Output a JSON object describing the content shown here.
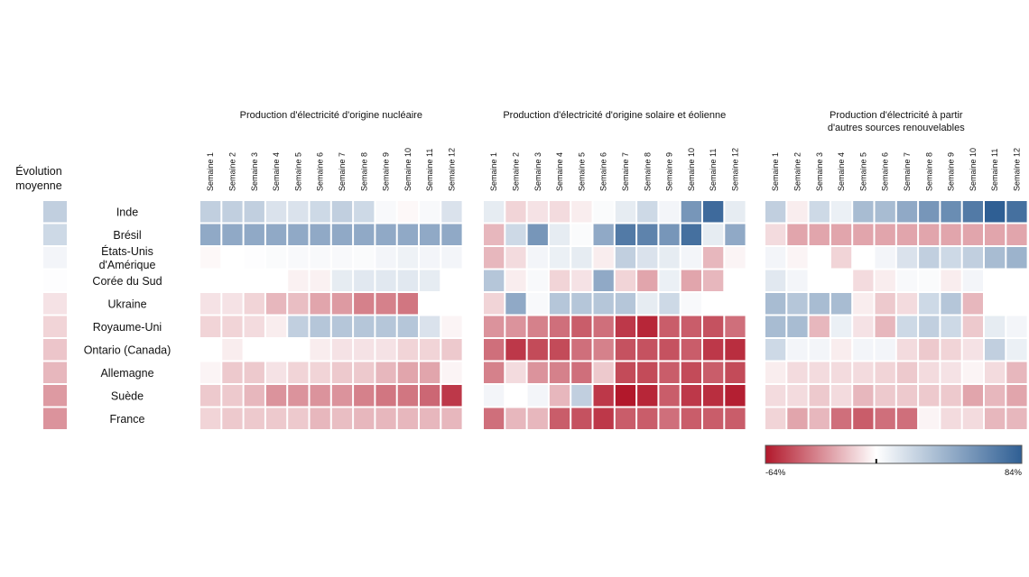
{
  "chart_data": {
    "type": "heatmap",
    "legend_title": "Évolution moyenne",
    "scale": {
      "min": -64,
      "max": 84,
      "min_label": "-64%",
      "max_label": "84%",
      "low_color": "#b2182b",
      "mid_color": "#ffffff",
      "high_color": "#2f5f94"
    },
    "weeks": [
      "Semaine 1",
      "Semaine 2",
      "Semaine 3",
      "Semaine 4",
      "Semaine 5",
      "Semaine 6",
      "Semaine 7",
      "Semaine 8",
      "Semaine 9",
      "Semaine 10",
      "Semaine 11",
      "Semaine 12"
    ],
    "countries": [
      {
        "lines": [
          "Inde"
        ]
      },
      {
        "lines": [
          "Brésil"
        ]
      },
      {
        "lines": [
          "États-Unis",
          "d'Amérique"
        ]
      },
      {
        "lines": [
          "Corée du Sud"
        ]
      },
      {
        "lines": [
          "Ukraine"
        ]
      },
      {
        "lines": [
          "Royaume-Uni"
        ]
      },
      {
        "lines": [
          "Ontario (Canada)"
        ]
      },
      {
        "lines": [
          "Allemagne"
        ]
      },
      {
        "lines": [
          "Suède"
        ]
      },
      {
        "lines": [
          "France"
        ]
      }
    ],
    "average": [
      25,
      20,
      5,
      1,
      -8,
      -12,
      -16,
      -20,
      -28,
      -30
    ],
    "panels": [
      {
        "title_lines": [
          "Production d'électricité d'origine nucléaire"
        ],
        "values": [
          [
            25,
            25,
            25,
            15,
            15,
            20,
            25,
            20,
            3,
            -2,
            3,
            15
          ],
          [
            45,
            45,
            45,
            45,
            45,
            45,
            45,
            45,
            45,
            45,
            45,
            45
          ],
          [
            -2,
            0,
            1,
            2,
            3,
            3,
            3,
            2,
            5,
            7,
            5,
            5
          ],
          [
            0,
            0,
            0,
            0,
            -4,
            -4,
            10,
            12,
            12,
            12,
            10,
            0
          ],
          [
            -8,
            -8,
            -12,
            -20,
            -18,
            -25,
            -28,
            -35,
            -35,
            -38,
            null,
            null
          ],
          [
            -12,
            -12,
            -10,
            -5,
            25,
            30,
            30,
            30,
            30,
            30,
            15,
            -3
          ],
          [
            0,
            -5,
            0,
            0,
            0,
            -5,
            -8,
            -8,
            -8,
            -12,
            -12,
            -15
          ],
          [
            -3,
            -15,
            -15,
            -8,
            -12,
            -12,
            -15,
            -15,
            -20,
            -25,
            -25,
            -3
          ],
          [
            -15,
            -15,
            -20,
            -30,
            -30,
            -30,
            -30,
            -35,
            -38,
            -38,
            -42,
            -55
          ],
          [
            -12,
            -15,
            -15,
            -15,
            -15,
            -20,
            -18,
            -20,
            -20,
            -20,
            -20,
            -20
          ]
        ]
      },
      {
        "title_lines": [
          "Production d'électricité d'origine solaire et éolienne"
        ],
        "values": [
          [
            10,
            -12,
            -8,
            -10,
            -5,
            2,
            10,
            20,
            5,
            55,
            78,
            10
          ],
          [
            -20,
            20,
            55,
            10,
            2,
            45,
            70,
            65,
            55,
            75,
            10,
            45
          ],
          [
            -20,
            -10,
            5,
            8,
            10,
            -5,
            25,
            15,
            10,
            5,
            -20,
            -3
          ],
          [
            30,
            -5,
            3,
            -12,
            -8,
            45,
            -12,
            -25,
            8,
            -25,
            -20,
            null
          ],
          [
            -12,
            45,
            3,
            30,
            30,
            30,
            30,
            10,
            20,
            3,
            null,
            null
          ],
          [
            -30,
            -30,
            -35,
            -40,
            -45,
            -40,
            -55,
            -60,
            -45,
            -45,
            -48,
            -40
          ],
          [
            -40,
            -55,
            -50,
            -50,
            -40,
            -35,
            -48,
            -48,
            -48,
            -45,
            -55,
            -58
          ],
          [
            -35,
            -10,
            -30,
            -35,
            -40,
            -15,
            -50,
            -50,
            -45,
            -50,
            -45,
            -50
          ],
          [
            5,
            0,
            5,
            -20,
            25,
            -55,
            -64,
            -60,
            -45,
            -55,
            -58,
            -62
          ],
          [
            -40,
            -20,
            -20,
            -45,
            -48,
            -55,
            -45,
            -45,
            -40,
            -45,
            -45,
            -45
          ]
        ]
      },
      {
        "title_lines": [
          "Production d'électricité à partir",
          "d'autres sources renouvelables"
        ],
        "values": [
          [
            25,
            -5,
            20,
            8,
            35,
            35,
            45,
            55,
            60,
            70,
            84,
            75
          ],
          [
            -10,
            -25,
            -25,
            -25,
            -25,
            -25,
            -25,
            -25,
            -25,
            -25,
            -25,
            -25
          ],
          [
            5,
            -3,
            0,
            -12,
            0,
            5,
            15,
            25,
            20,
            25,
            35,
            40
          ],
          [
            12,
            5,
            0,
            0,
            -10,
            -5,
            3,
            2,
            -5,
            5,
            null,
            null
          ],
          [
            35,
            30,
            35,
            35,
            -5,
            -15,
            -10,
            20,
            30,
            -20,
            null,
            null
          ],
          [
            35,
            35,
            -20,
            8,
            -8,
            -20,
            20,
            25,
            20,
            -15,
            10,
            5
          ],
          [
            20,
            5,
            5,
            -5,
            5,
            5,
            -10,
            -15,
            -12,
            -8,
            25,
            8
          ],
          [
            -5,
            -10,
            -10,
            -10,
            -10,
            -12,
            -15,
            -10,
            -8,
            -3,
            -10,
            -20
          ],
          [
            -10,
            -10,
            -15,
            -10,
            -20,
            -15,
            -15,
            -15,
            -15,
            -25,
            -20,
            -25
          ],
          [
            -12,
            -25,
            -20,
            -40,
            -45,
            -40,
            -40,
            -3,
            -10,
            -10,
            -20,
            -20
          ]
        ]
      }
    ]
  }
}
